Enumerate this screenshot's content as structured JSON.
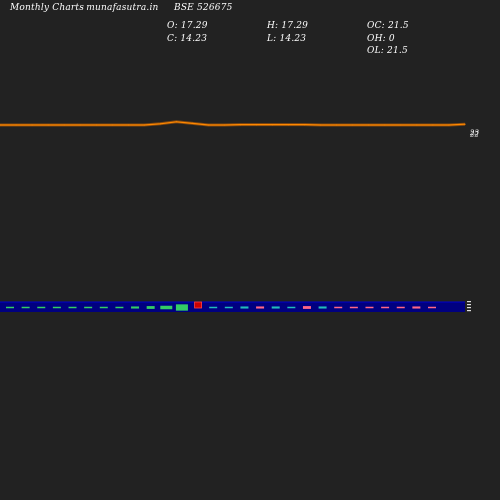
{
  "header": {
    "title": "Monthly Charts",
    "site": "- munafasutra.in",
    "symbol": "BSE 526675",
    "open": "O: 17.29",
    "close": "C: 14.23",
    "high": "H: 17.29",
    "low": "L: 14.23",
    "oc": "OC: 21.5",
    "oh": "OH: 0",
    "ol": "OL: 21.5"
  },
  "colors": {
    "background": "#222222",
    "price_line": "#cc6600",
    "price_line_highlight": "#ff8800",
    "volume_band": "#000080",
    "volume_band_edge": "#0000cc",
    "up_volume": "#33cc66",
    "down_volume": "#ff6688",
    "neutral_volume": "#22bbbb"
  },
  "chart_data": [
    {
      "type": "line",
      "title": "",
      "series": [
        {
          "values": [
            22,
            22,
            22,
            22,
            22,
            22,
            22,
            22,
            22,
            22,
            22.3,
            22.8,
            22.4,
            22,
            22,
            22.1,
            22.1,
            22.1,
            22.1,
            22.1,
            22,
            22,
            22,
            22,
            22,
            22,
            22,
            22,
            22,
            22.2
          ]
        }
      ],
      "y_tick_labels": [
        "23",
        "22"
      ],
      "ylim": [
        18,
        26
      ]
    },
    {
      "type": "bar",
      "title": "",
      "series": [
        {
          "values": [
            1,
            1,
            1,
            1,
            2,
            1,
            2,
            2,
            3,
            4,
            5,
            9,
            7,
            2,
            2,
            3,
            3,
            3,
            2,
            4,
            3,
            2,
            2,
            2,
            2,
            2,
            3,
            2
          ]
        }
      ],
      "direction": [
        "up",
        "up",
        "up",
        "up",
        "up",
        "up",
        "up",
        "up",
        "up",
        "up",
        "up",
        "up",
        "down",
        "neutral",
        "neutral",
        "neutral",
        "down",
        "neutral",
        "neutral",
        "down",
        "neutral",
        "down",
        "down",
        "down",
        "down",
        "down",
        "down",
        "down"
      ]
    }
  ]
}
